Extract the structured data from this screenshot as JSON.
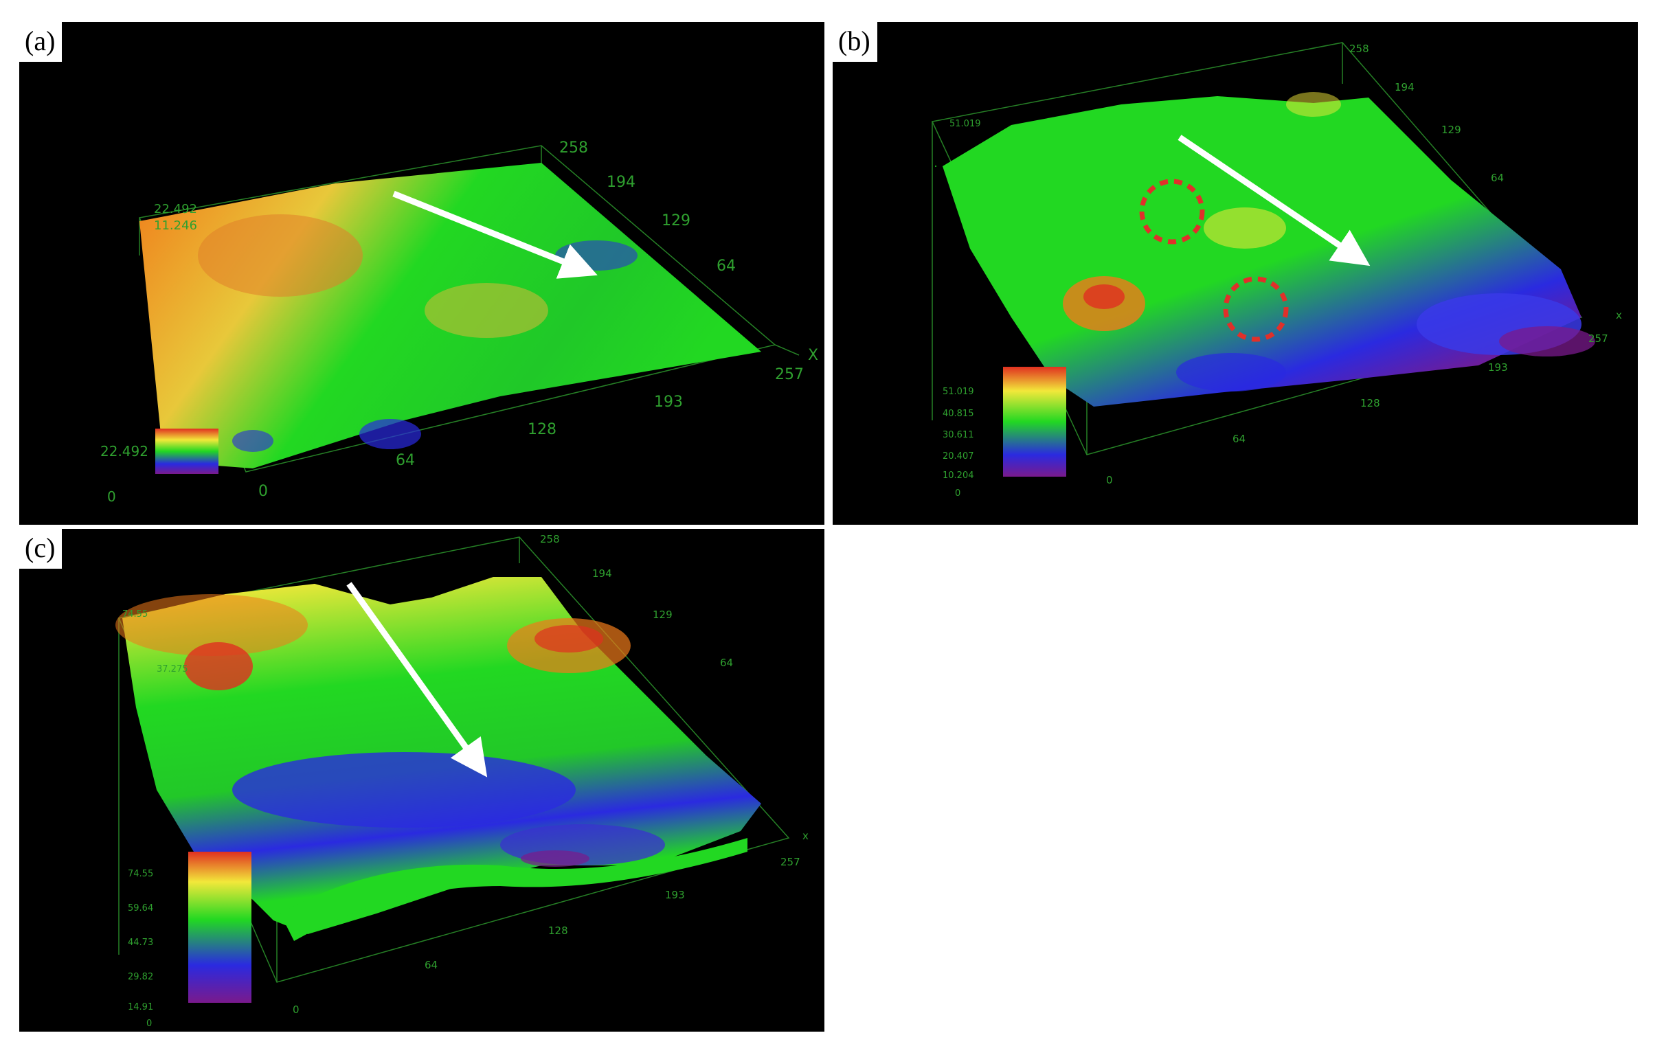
{
  "figure": {
    "panels": [
      {
        "label": "(a)",
        "x_ticks": [
          "0",
          "64",
          "128",
          "193",
          "257"
        ],
        "x_axis_letter": "X",
        "y_ticks": [
          "258",
          "194",
          "129",
          "64"
        ],
        "z_labels": [
          "22.492",
          "11.246"
        ],
        "colorbar_max": "22.492",
        "colorbar_min": "0",
        "colorbar_ticks": []
      },
      {
        "label": "(b)",
        "x_ticks": [
          "0",
          "64",
          "128",
          "193",
          "257"
        ],
        "x_axis_letter": "x",
        "y_ticks": [
          "258",
          "194",
          "129",
          "64"
        ],
        "z_labels": [
          "51.019"
        ],
        "colorbar_max": "",
        "colorbar_min": "0",
        "colorbar_ticks": [
          "51.019",
          "40.815",
          "30.611",
          "20.407",
          "10.204"
        ]
      },
      {
        "label": "(c)",
        "x_ticks": [
          "0",
          "64",
          "128",
          "193",
          "257"
        ],
        "x_axis_letter": "x",
        "y_ticks": [
          "258",
          "194",
          "129",
          "64"
        ],
        "z_labels": [
          "74.55",
          "37.275"
        ],
        "colorbar_max": "",
        "colorbar_min": "0",
        "colorbar_ticks": [
          "74.55",
          "59.64",
          "44.73",
          "29.82",
          "14.91"
        ]
      }
    ],
    "colors": {
      "background": "#000000",
      "axis_green": "#2fa02f",
      "arrow": "#ffffff",
      "circle_marker": "#e0302a",
      "height_map": [
        "#7a1a8c",
        "#2a2ae0",
        "#22d822",
        "#f2e83a",
        "#f07a1a",
        "#e03020"
      ]
    }
  }
}
